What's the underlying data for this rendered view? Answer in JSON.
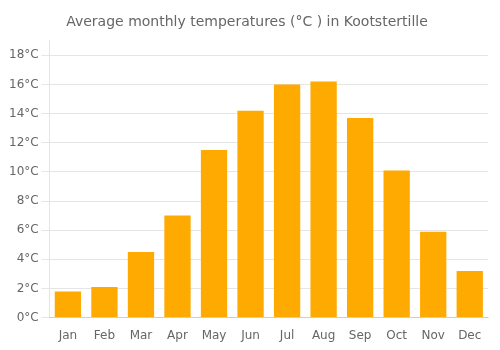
{
  "chart_data": {
    "type": "bar",
    "title": "Average monthly temperatures (°C ) in Kootstertille",
    "categories": [
      "Jan",
      "Feb",
      "Mar",
      "Apr",
      "May",
      "Jun",
      "Jul",
      "Aug",
      "Sep",
      "Oct",
      "Nov",
      "Dec"
    ],
    "values": [
      1.8,
      2.1,
      4.5,
      7.0,
      11.5,
      14.2,
      16.0,
      16.2,
      13.7,
      10.1,
      5.9,
      3.2
    ],
    "color": "#FFAA00",
    "ylim": [
      0,
      19
    ],
    "yticks": [
      {
        "value": 0,
        "label": "0°C"
      },
      {
        "value": 2,
        "label": "2°C"
      },
      {
        "value": 4,
        "label": "4°C"
      },
      {
        "value": 6,
        "label": "6°C"
      },
      {
        "value": 8,
        "label": "8°C"
      },
      {
        "value": 10,
        "label": "10°C"
      },
      {
        "value": 12,
        "label": "12°C"
      },
      {
        "value": 14,
        "label": "14°C"
      },
      {
        "value": 16,
        "label": "16°C"
      },
      {
        "value": 18,
        "label": "18°C"
      }
    ],
    "grid": true
  }
}
